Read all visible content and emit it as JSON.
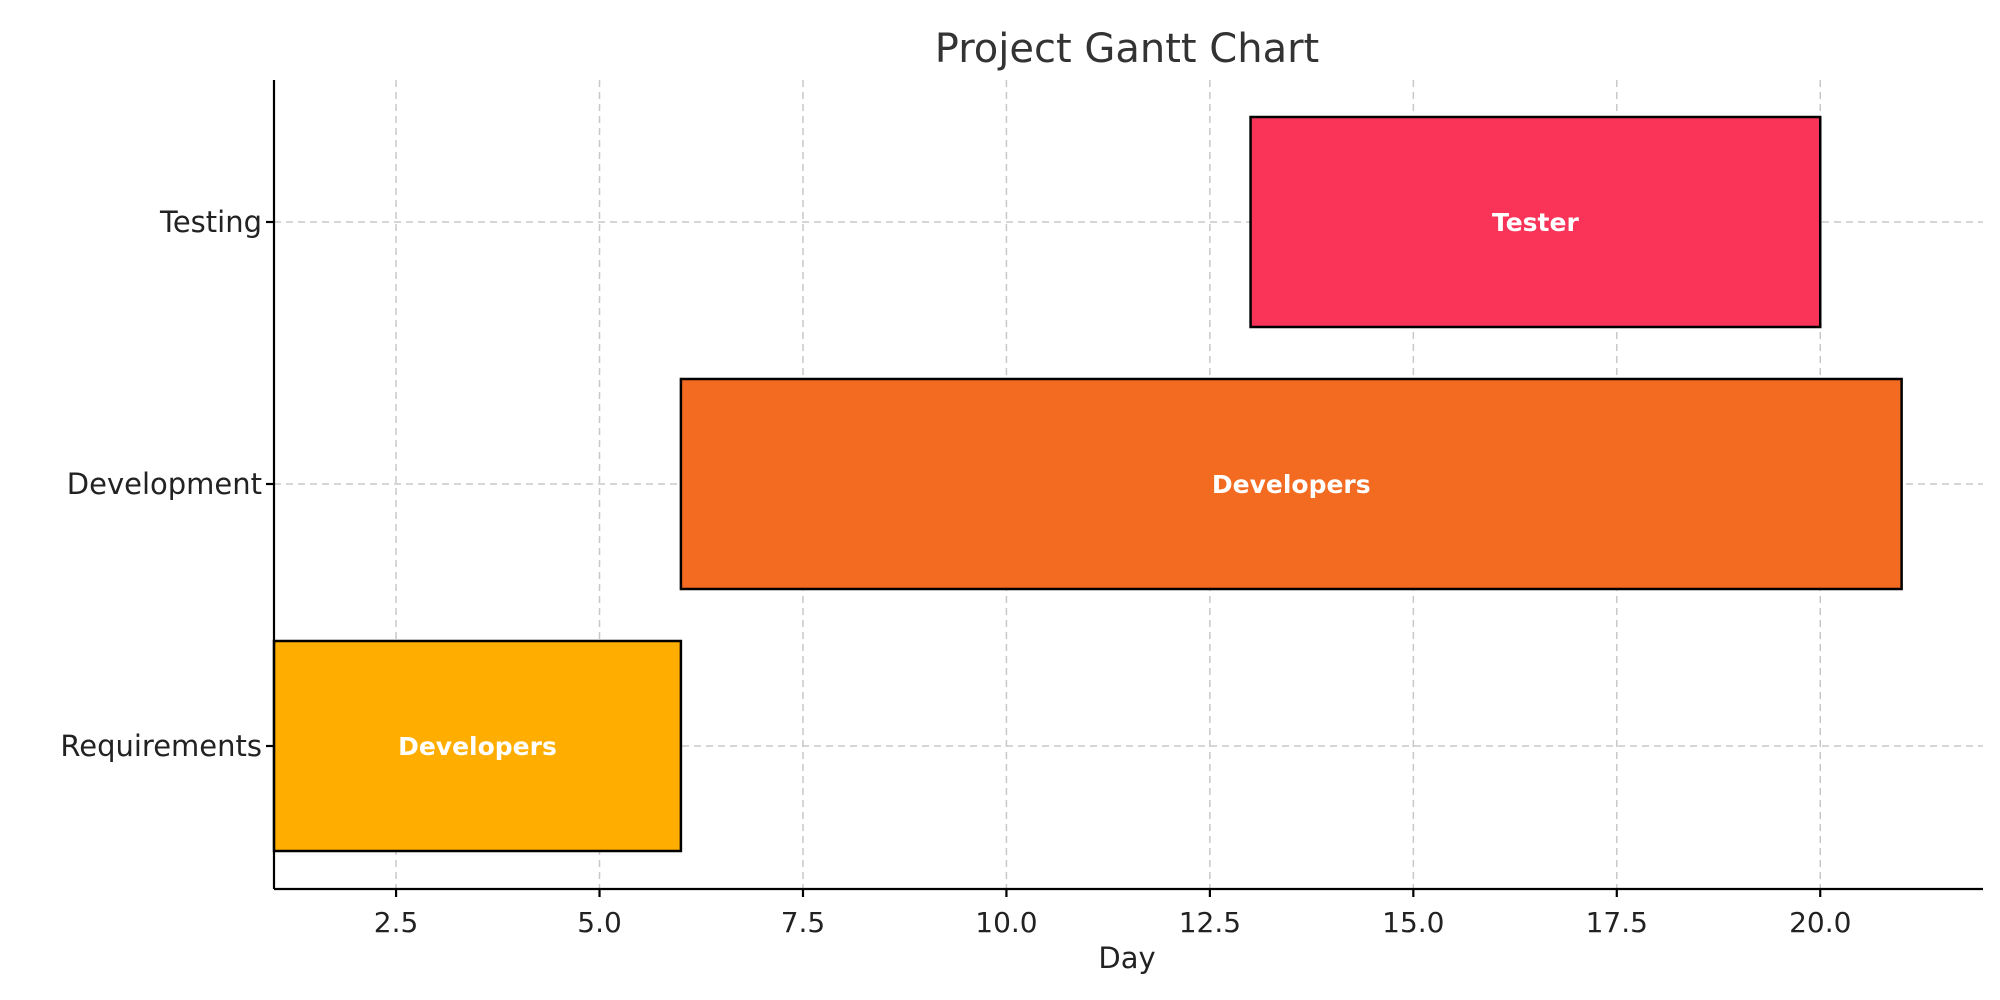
{
  "chart_data": {
    "type": "bar",
    "orientation": "horizontal-gantt",
    "title": "Project Gantt Chart",
    "xlabel": "Day",
    "ylabel": "",
    "xlim": [
      1,
      22
    ],
    "xticks": [
      2.5,
      5.0,
      7.5,
      10.0,
      12.5,
      15.0,
      17.5,
      20.0
    ],
    "xtick_labels": [
      "2.5",
      "5.0",
      "7.5",
      "10.0",
      "12.5",
      "15.0",
      "17.5",
      "20.0"
    ],
    "grid": true,
    "categories": [
      "Requirements",
      "Development",
      "Testing"
    ],
    "tasks": [
      {
        "task": "Requirements",
        "start": 1,
        "end": 6,
        "resource": "Developers",
        "color": "#FFAE00"
      },
      {
        "task": "Development",
        "start": 6,
        "end": 21,
        "resource": "Developers",
        "color": "#F26B21"
      },
      {
        "task": "Testing",
        "start": 13,
        "end": 20,
        "resource": "Tester",
        "color": "#F93458"
      }
    ]
  }
}
